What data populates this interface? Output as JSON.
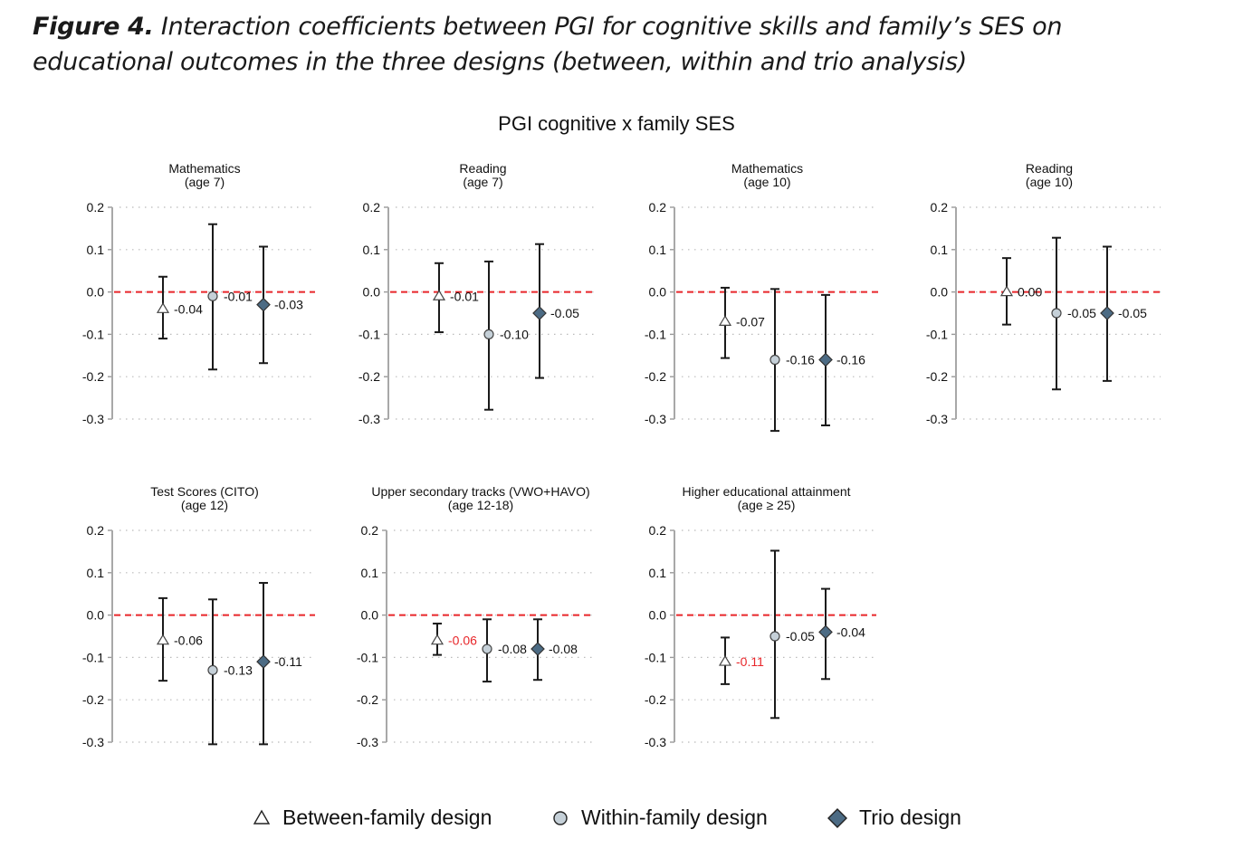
{
  "caption": {
    "label": "Figure 4.",
    "text": " Interaction coefficients between PGI for cognitive skills and family’s SES on educational outcomes in the three designs (between, within and trio analysis)"
  },
  "chart_data": {
    "type": "scatter",
    "subtype": "coefficient-plot-with-error-bars",
    "title": "PGI cognitive x family SES",
    "ylim": [
      -0.3,
      0.2
    ],
    "yticks": [
      0.2,
      0.1,
      0.0,
      -0.1,
      -0.2,
      -0.3
    ],
    "ytick_labels": [
      "0.2",
      "0.1",
      "0.0",
      "-0.1",
      "-0.2",
      "-0.3"
    ],
    "grid": "horizontal-dotted",
    "reference_line": {
      "y": 0.0,
      "style": "dashed",
      "color": "#e8262a"
    },
    "series": [
      {
        "name": "Between-family design",
        "marker": "triangle-open",
        "color": "#ffffff"
      },
      {
        "name": "Within-family design",
        "marker": "circle",
        "color": "#c5d0d8"
      },
      {
        "name": "Trio design",
        "marker": "diamond",
        "color": "#4c6b84"
      }
    ],
    "highlight_color": "#e8262a",
    "panels": [
      {
        "title": [
          "Mathematics",
          "(age 7)"
        ],
        "points": [
          {
            "series": 0,
            "estimate": -0.04,
            "ci": [
              -0.11,
              0.036
            ],
            "label": "-0.04",
            "highlight": false
          },
          {
            "series": 1,
            "estimate": -0.01,
            "ci": [
              -0.183,
              0.16
            ],
            "label": "-0.01",
            "highlight": false
          },
          {
            "series": 2,
            "estimate": -0.03,
            "ci": [
              -0.168,
              0.107
            ],
            "label": "-0.03",
            "highlight": false
          }
        ]
      },
      {
        "title": [
          "Reading",
          "(age 7)"
        ],
        "points": [
          {
            "series": 0,
            "estimate": -0.01,
            "ci": [
              -0.095,
              0.068
            ],
            "label": "-0.01",
            "highlight": false
          },
          {
            "series": 1,
            "estimate": -0.1,
            "ci": [
              -0.278,
              0.072
            ],
            "label": "-0.10",
            "highlight": false
          },
          {
            "series": 2,
            "estimate": -0.05,
            "ci": [
              -0.203,
              0.113
            ],
            "label": "-0.05",
            "highlight": false
          }
        ]
      },
      {
        "title": [
          "Mathematics",
          "(age 10)"
        ],
        "points": [
          {
            "series": 0,
            "estimate": -0.07,
            "ci": [
              -0.156,
              0.01
            ],
            "label": "-0.07",
            "highlight": false
          },
          {
            "series": 1,
            "estimate": -0.16,
            "ci": [
              -0.328,
              0.007
            ],
            "label": "-0.16",
            "highlight": false
          },
          {
            "series": 2,
            "estimate": -0.16,
            "ci": [
              -0.315,
              -0.007
            ],
            "label": "-0.16",
            "highlight": false
          }
        ]
      },
      {
        "title": [
          "Reading",
          "(age 10)"
        ],
        "points": [
          {
            "series": 0,
            "estimate": 0.0,
            "ci": [
              -0.077,
              0.08
            ],
            "label": "0.00",
            "highlight": false
          },
          {
            "series": 1,
            "estimate": -0.05,
            "ci": [
              -0.23,
              0.128
            ],
            "label": "-0.05",
            "highlight": false
          },
          {
            "series": 2,
            "estimate": -0.05,
            "ci": [
              -0.21,
              0.107
            ],
            "label": "-0.05",
            "highlight": false
          }
        ]
      },
      {
        "title": [
          "Test Scores (CITO)",
          "(age 12)"
        ],
        "points": [
          {
            "series": 0,
            "estimate": -0.06,
            "ci": [
              -0.155,
              0.04
            ],
            "label": "-0.06",
            "highlight": false
          },
          {
            "series": 1,
            "estimate": -0.13,
            "ci": [
              -0.305,
              0.037
            ],
            "label": "-0.13",
            "highlight": false
          },
          {
            "series": 2,
            "estimate": -0.11,
            "ci": [
              -0.305,
              0.076
            ],
            "label": "-0.11",
            "highlight": false
          }
        ]
      },
      {
        "title": [
          "Upper secondary tracks (VWO+HAVO)",
          "(age 12-18)"
        ],
        "points": [
          {
            "series": 0,
            "estimate": -0.06,
            "ci": [
              -0.094,
              -0.02
            ],
            "label": "-0.06",
            "highlight": true
          },
          {
            "series": 1,
            "estimate": -0.08,
            "ci": [
              -0.157,
              -0.01
            ],
            "label": "-0.08",
            "highlight": false
          },
          {
            "series": 2,
            "estimate": -0.08,
            "ci": [
              -0.153,
              -0.01
            ],
            "label": "-0.08",
            "highlight": false
          }
        ]
      },
      {
        "title": [
          "Higher educational attainment",
          "(age ≥ 25)"
        ],
        "points": [
          {
            "series": 0,
            "estimate": -0.11,
            "ci": [
              -0.163,
              -0.053
            ],
            "label": "-0.11",
            "highlight": true
          },
          {
            "series": 1,
            "estimate": -0.05,
            "ci": [
              -0.243,
              0.152
            ],
            "label": "-0.05",
            "highlight": false
          },
          {
            "series": 2,
            "estimate": -0.04,
            "ci": [
              -0.151,
              0.062
            ],
            "label": "-0.04",
            "highlight": false
          }
        ]
      }
    ]
  },
  "legend": {
    "items": [
      {
        "label": "Between-family design"
      },
      {
        "label": "Within-family design"
      },
      {
        "label": "Trio design"
      }
    ]
  }
}
